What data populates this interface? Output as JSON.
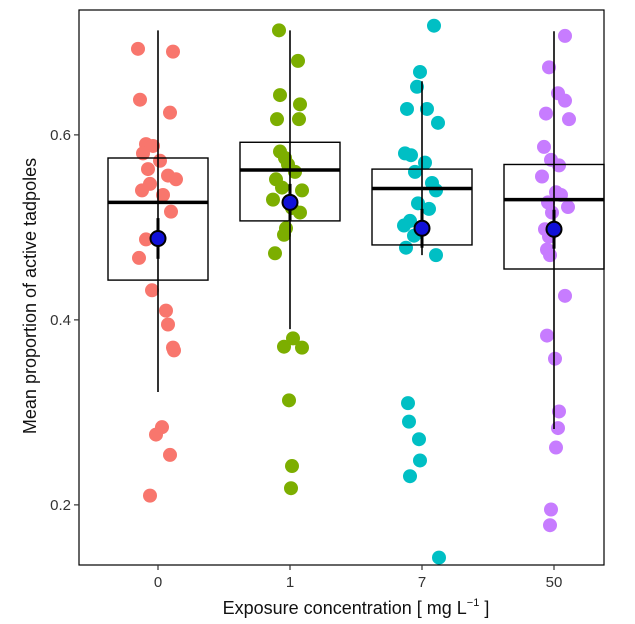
{
  "chart_data": {
    "type": "box-strip",
    "xlabel": "Exposure concentration [ mg L",
    "xlabel_superscript": "−1",
    "xlabel_suffix": " ]",
    "ylabel": "Mean proportion of active tadpoles",
    "categories": [
      "0",
      "1",
      "7",
      "50"
    ],
    "ylim": [
      0.135,
      0.735
    ],
    "yticks": [
      0.2,
      0.4,
      0.6
    ],
    "ytick_labels": [
      "0.2",
      "0.4",
      "0.6"
    ],
    "colors": {
      "point_fill": [
        "#F8766D",
        "#7CAE00",
        "#00BFC4",
        "#C77CFF"
      ],
      "box_stroke": "#000000",
      "mean_fill": "#1010D8",
      "mean_stroke": "#000000"
    },
    "groups": [
      {
        "category": "0",
        "box": {
          "whisker_low": 0.322,
          "q1": 0.443,
          "median": 0.527,
          "q3": 0.575,
          "whisker_high": 0.713
        },
        "mean": 0.488,
        "mean_ci": [
          0.466,
          0.51
        ],
        "points": [
          {
            "x": -0.2,
            "y": 0.693
          },
          {
            "x": 0.15,
            "y": 0.69
          },
          {
            "x": -0.18,
            "y": 0.638
          },
          {
            "x": 0.12,
            "y": 0.624
          },
          {
            "x": -0.12,
            "y": 0.59
          },
          {
            "x": -0.05,
            "y": 0.588
          },
          {
            "x": -0.15,
            "y": 0.58
          },
          {
            "x": 0.02,
            "y": 0.572
          },
          {
            "x": -0.1,
            "y": 0.563
          },
          {
            "x": 0.1,
            "y": 0.556
          },
          {
            "x": 0.18,
            "y": 0.552
          },
          {
            "x": -0.08,
            "y": 0.547
          },
          {
            "x": -0.16,
            "y": 0.54
          },
          {
            "x": 0.05,
            "y": 0.535
          },
          {
            "x": 0.13,
            "y": 0.517
          },
          {
            "x": -0.12,
            "y": 0.487
          },
          {
            "x": -0.19,
            "y": 0.467
          },
          {
            "x": -0.06,
            "y": 0.432
          },
          {
            "x": 0.08,
            "y": 0.41
          },
          {
            "x": 0.1,
            "y": 0.395
          },
          {
            "x": 0.15,
            "y": 0.37
          },
          {
            "x": 0.16,
            "y": 0.367
          },
          {
            "x": 0.04,
            "y": 0.284
          },
          {
            "x": -0.02,
            "y": 0.276
          },
          {
            "x": 0.12,
            "y": 0.254
          },
          {
            "x": -0.08,
            "y": 0.21
          }
        ]
      },
      {
        "category": "1",
        "box": {
          "whisker_low": 0.39,
          "q1": 0.507,
          "median": 0.562,
          "q3": 0.592,
          "whisker_high": 0.713
        },
        "mean": 0.527,
        "mean_ci": [
          0.507,
          0.547
        ],
        "points": [
          {
            "x": -0.11,
            "y": 0.713
          },
          {
            "x": 0.08,
            "y": 0.68
          },
          {
            "x": -0.1,
            "y": 0.643
          },
          {
            "x": 0.1,
            "y": 0.633
          },
          {
            "x": -0.13,
            "y": 0.617
          },
          {
            "x": 0.09,
            "y": 0.617
          },
          {
            "x": -0.1,
            "y": 0.582
          },
          {
            "x": -0.05,
            "y": 0.575
          },
          {
            "x": -0.02,
            "y": 0.568
          },
          {
            "x": 0.05,
            "y": 0.56
          },
          {
            "x": -0.14,
            "y": 0.552
          },
          {
            "x": -0.08,
            "y": 0.543
          },
          {
            "x": 0.12,
            "y": 0.54
          },
          {
            "x": -0.17,
            "y": 0.53
          },
          {
            "x": 0.02,
            "y": 0.521
          },
          {
            "x": 0.1,
            "y": 0.516
          },
          {
            "x": -0.04,
            "y": 0.499
          },
          {
            "x": -0.06,
            "y": 0.492
          },
          {
            "x": -0.15,
            "y": 0.472
          },
          {
            "x": 0.03,
            "y": 0.38
          },
          {
            "x": -0.06,
            "y": 0.371
          },
          {
            "x": 0.12,
            "y": 0.37
          },
          {
            "x": -0.01,
            "y": 0.313
          },
          {
            "x": 0.02,
            "y": 0.242
          },
          {
            "x": 0.01,
            "y": 0.218
          }
        ]
      },
      {
        "category": "7",
        "box": {
          "whisker_low": 0.47,
          "q1": 0.481,
          "median": 0.542,
          "q3": 0.563,
          "whisker_high": 0.658
        },
        "mean": 0.499,
        "mean_ci": [
          0.478,
          0.52
        ],
        "points": [
          {
            "x": 0.12,
            "y": 0.718
          },
          {
            "x": -0.02,
            "y": 0.668
          },
          {
            "x": -0.05,
            "y": 0.652
          },
          {
            "x": -0.15,
            "y": 0.628
          },
          {
            "x": 0.05,
            "y": 0.628
          },
          {
            "x": 0.16,
            "y": 0.613
          },
          {
            "x": -0.17,
            "y": 0.58
          },
          {
            "x": -0.11,
            "y": 0.578
          },
          {
            "x": 0.03,
            "y": 0.57
          },
          {
            "x": -0.07,
            "y": 0.56
          },
          {
            "x": 0.1,
            "y": 0.548
          },
          {
            "x": 0.14,
            "y": 0.54
          },
          {
            "x": -0.04,
            "y": 0.526
          },
          {
            "x": 0.07,
            "y": 0.52
          },
          {
            "x": -0.12,
            "y": 0.507
          },
          {
            "x": -0.18,
            "y": 0.502
          },
          {
            "x": -0.08,
            "y": 0.491
          },
          {
            "x": -0.16,
            "y": 0.478
          },
          {
            "x": 0.14,
            "y": 0.47
          },
          {
            "x": -0.14,
            "y": 0.31
          },
          {
            "x": -0.13,
            "y": 0.29
          },
          {
            "x": -0.03,
            "y": 0.271
          },
          {
            "x": -0.02,
            "y": 0.248
          },
          {
            "x": -0.12,
            "y": 0.231
          },
          {
            "x": 0.17,
            "y": 0.143
          }
        ]
      },
      {
        "category": "50",
        "box": {
          "whisker_low": 0.282,
          "q1": 0.455,
          "median": 0.53,
          "q3": 0.568,
          "whisker_high": 0.712
        },
        "mean": 0.498,
        "mean_ci": [
          0.477,
          0.519
        ],
        "points": [
          {
            "x": 0.11,
            "y": 0.707
          },
          {
            "x": -0.05,
            "y": 0.673
          },
          {
            "x": 0.04,
            "y": 0.645
          },
          {
            "x": 0.11,
            "y": 0.637
          },
          {
            "x": -0.08,
            "y": 0.623
          },
          {
            "x": 0.15,
            "y": 0.617
          },
          {
            "x": -0.1,
            "y": 0.587
          },
          {
            "x": -0.03,
            "y": 0.573
          },
          {
            "x": 0.05,
            "y": 0.567
          },
          {
            "x": -0.12,
            "y": 0.555
          },
          {
            "x": 0.02,
            "y": 0.538
          },
          {
            "x": 0.07,
            "y": 0.535
          },
          {
            "x": -0.06,
            "y": 0.527
          },
          {
            "x": 0.14,
            "y": 0.522
          },
          {
            "x": -0.02,
            "y": 0.516
          },
          {
            "x": -0.09,
            "y": 0.498
          },
          {
            "x": -0.05,
            "y": 0.49
          },
          {
            "x": -0.07,
            "y": 0.476
          },
          {
            "x": -0.04,
            "y": 0.47
          },
          {
            "x": 0.11,
            "y": 0.426
          },
          {
            "x": -0.07,
            "y": 0.383
          },
          {
            "x": 0.01,
            "y": 0.358
          },
          {
            "x": 0.05,
            "y": 0.301
          },
          {
            "x": 0.04,
            "y": 0.283
          },
          {
            "x": 0.02,
            "y": 0.262
          },
          {
            "x": -0.03,
            "y": 0.195
          },
          {
            "x": -0.04,
            "y": 0.178
          }
        ]
      }
    ]
  }
}
